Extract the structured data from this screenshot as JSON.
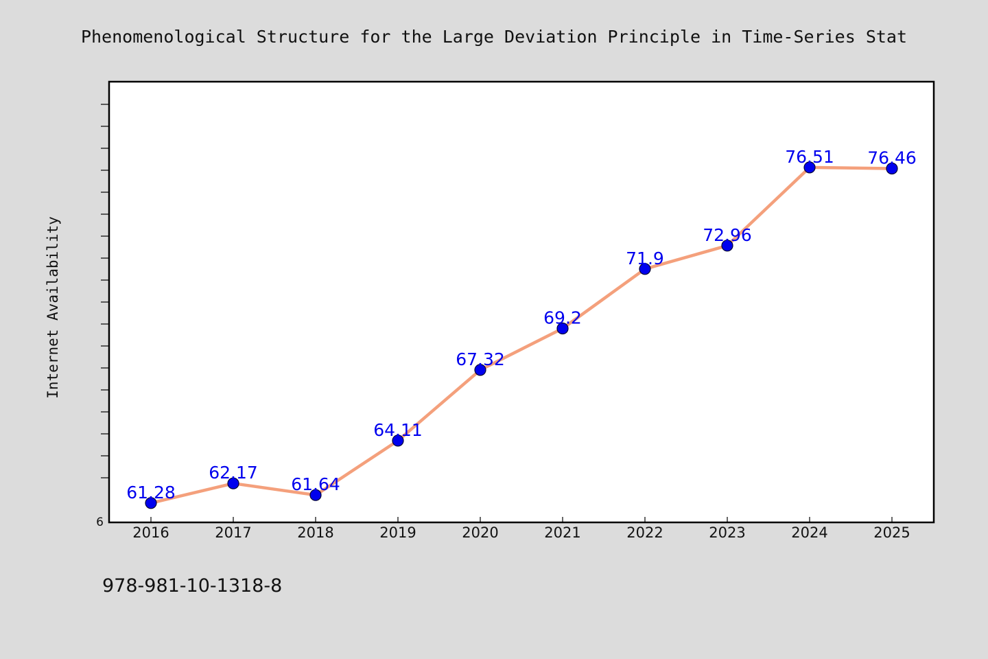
{
  "chart_data": {
    "type": "line",
    "title": "Phenomenological Structure for the Large Deviation Principle in Time-Series Stat",
    "xlabel": "",
    "ylabel": "Internet Availability",
    "categories": [
      "2016",
      "2017",
      "2018",
      "2019",
      "2020",
      "2021",
      "2022",
      "2023",
      "2024",
      "2025"
    ],
    "series": [
      {
        "values": [
          61.28,
          62.17,
          61.64,
          64.11,
          67.32,
          69.2,
          71.9,
          72.96,
          76.51,
          76.46
        ],
        "labels": [
          "61.28",
          "62.17",
          "61.64",
          "64.11",
          "67.32",
          "69.2",
          "71.9",
          "72.96",
          "76.51",
          "76.46"
        ]
      }
    ],
    "y_tick_labels": [
      "6"
    ],
    "ylim": [
      60.4,
      80.4
    ],
    "grid": false,
    "legend": "none",
    "colors": {
      "line": "#f4a07c",
      "marker": "#0000ee",
      "marker_edge": "#000033",
      "data_label": "#0000ee",
      "axes_frame": "#000000",
      "plot_background": "#ffffff",
      "figure_background": "#dcdcdc"
    }
  },
  "footnote": "978-981-10-1318-8"
}
